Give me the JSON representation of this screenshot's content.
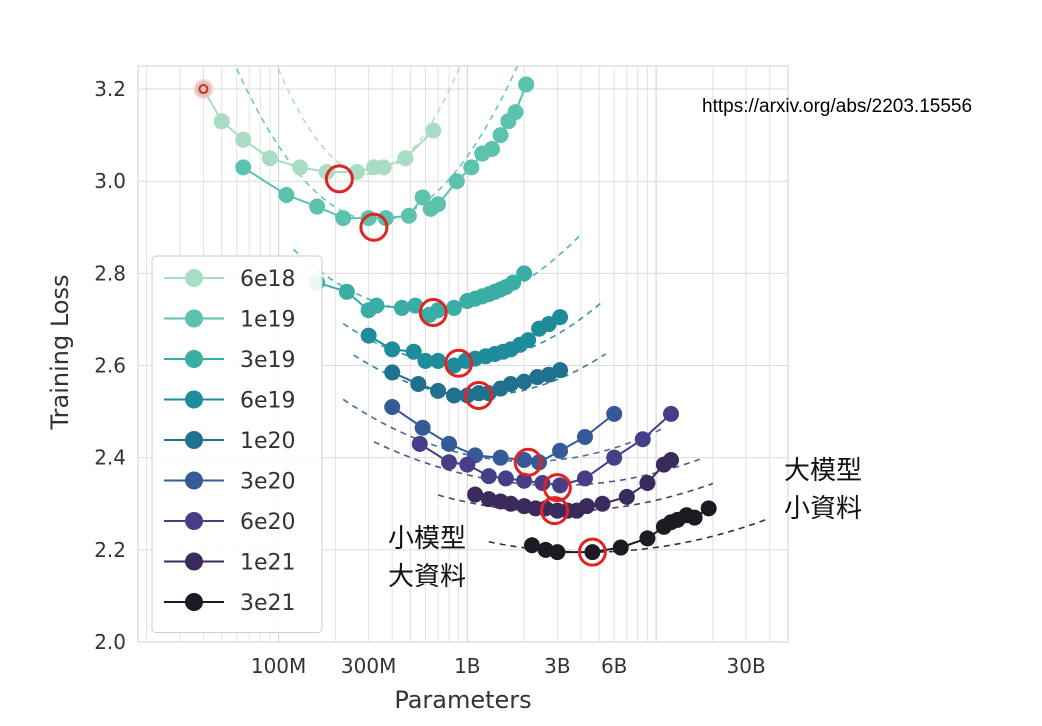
{
  "source_url": "https://arxiv.org/abs/2203.15556",
  "annotations": {
    "left": "小模型\n大資料",
    "right": "大模型\n小資料"
  },
  "chart_data": {
    "type": "scatter",
    "xlabel": "Parameters",
    "ylabel": "Training Loss",
    "x_scale": "log",
    "xlim": [
      18000000,
      50000000000
    ],
    "ylim": [
      2.0,
      3.25
    ],
    "x_ticks": [
      {
        "value": 100000000,
        "label": "100M"
      },
      {
        "value": 300000000,
        "label": "300M"
      },
      {
        "value": 1000000000,
        "label": "1B"
      },
      {
        "value": 3000000000,
        "label": "3B"
      },
      {
        "value": 6000000000,
        "label": "6B"
      },
      {
        "value": 30000000000,
        "label": "30B"
      }
    ],
    "y_ticks": [
      2.0,
      2.2,
      2.4,
      2.6,
      2.8,
      3.0,
      3.2
    ],
    "grid": true,
    "legend_position": "left",
    "series": [
      {
        "name": "6e18",
        "color": "#a8dcc4",
        "x": [
          40000000.0,
          50000000.0,
          65000000.0,
          90000000.0,
          130000000.0,
          180000000.0,
          260000000.0,
          320000000.0,
          360000000.0,
          470000000.0,
          660000000.0
        ],
        "y": [
          3.2,
          3.13,
          3.09,
          3.05,
          3.03,
          3.02,
          3.02,
          3.03,
          3.03,
          3.05,
          3.11
        ],
        "fit": {
          "x0": 300000000.0,
          "y0": 3.015,
          "k": 1.0,
          "range": [
            35000000.0,
            2200000000.0
          ]
        },
        "optimum": {
          "x": 210000000.0,
          "y": 3.005
        }
      },
      {
        "name": "1e19",
        "color": "#5cc2ad",
        "x": [
          65000000.0,
          110000000.0,
          160000000.0,
          220000000.0,
          300000000.0,
          370000000.0,
          490000000.0,
          580000000.0,
          640000000.0,
          700000000.0,
          880000000.0,
          1050000000.0,
          1200000000.0,
          1350000000.0,
          1500000000.0,
          1650000000.0,
          1800000000.0,
          2050000000.0
        ],
        "y": [
          3.03,
          2.97,
          2.945,
          2.92,
          2.92,
          2.92,
          2.925,
          2.965,
          2.94,
          2.95,
          3.0,
          3.03,
          3.06,
          3.07,
          3.1,
          3.13,
          3.15,
          3.21
        ],
        "fit": {
          "x0": 330000000.0,
          "y0": 2.915,
          "k": 0.6,
          "range": [
            60000000.0,
            2400000000.0
          ]
        },
        "optimum": {
          "x": 320000000.0,
          "y": 2.9
        }
      },
      {
        "name": "3e19",
        "color": "#3aaea4",
        "x": [
          160000000.0,
          230000000.0,
          300000000.0,
          330000000.0,
          450000000.0,
          530000000.0,
          630000000.0,
          700000000.0,
          850000000.0,
          1000000000.0,
          1100000000.0,
          1200000000.0,
          1300000000.0,
          1400000000.0,
          1500000000.0,
          1600000000.0,
          1750000000.0,
          2000000000.0
        ],
        "y": [
          2.78,
          2.76,
          2.72,
          2.73,
          2.725,
          2.73,
          2.71,
          2.72,
          2.725,
          2.74,
          2.745,
          2.75,
          2.755,
          2.76,
          2.765,
          2.77,
          2.78,
          2.8
        ],
        "fit": {
          "x0": 630000000.0,
          "y0": 2.717,
          "k": 0.26,
          "range": [
            120000000.0,
            4000000000.0
          ]
        },
        "optimum": {
          "x": 660000000.0,
          "y": 2.715
        }
      },
      {
        "name": "6e19",
        "color": "#1f8c9c",
        "x": [
          300000000.0,
          400000000.0,
          520000000.0,
          600000000.0,
          700000000.0,
          850000000.0,
          980000000.0,
          1100000000.0,
          1250000000.0,
          1400000000.0,
          1550000000.0,
          1700000000.0,
          1900000000.0,
          2100000000.0,
          2400000000.0,
          2700000000.0,
          3100000000.0
        ],
        "y": [
          2.665,
          2.635,
          2.63,
          2.61,
          2.61,
          2.6,
          2.61,
          2.615,
          2.62,
          2.625,
          2.63,
          2.635,
          2.645,
          2.655,
          2.68,
          2.69,
          2.705
        ],
        "fit": {
          "x0": 900000000.0,
          "y0": 2.605,
          "k": 0.23,
          "range": [
            220000000.0,
            5200000000.0
          ]
        },
        "optimum": {
          "x": 900000000.0,
          "y": 2.605
        }
      },
      {
        "name": "1e20",
        "color": "#207090",
        "x": [
          400000000.0,
          550000000.0,
          700000000.0,
          850000000.0,
          1000000000.0,
          1150000000.0,
          1300000000.0,
          1500000000.0,
          1700000000.0,
          2000000000.0,
          2350000000.0,
          2700000000.0,
          3100000000.0
        ],
        "y": [
          2.585,
          2.56,
          2.545,
          2.535,
          2.535,
          2.54,
          2.54,
          2.55,
          2.56,
          2.565,
          2.575,
          2.58,
          2.59
        ],
        "fit": {
          "x0": 1150000000.0,
          "y0": 2.535,
          "k": 0.2,
          "range": [
            250000000.0,
            5400000000.0
          ]
        },
        "optimum": {
          "x": 1150000000.0,
          "y": 2.535
        }
      },
      {
        "name": "3e20",
        "color": "#345a98",
        "x": [
          400000000.0,
          580000000.0,
          800000000.0,
          1100000000.0,
          1500000000.0,
          2000000000.0,
          2400000000.0,
          3100000000.0,
          4200000000.0,
          6000000000.0
        ],
        "y": [
          2.51,
          2.465,
          2.43,
          2.405,
          2.4,
          2.395,
          2.39,
          2.415,
          2.445,
          2.495
        ],
        "fit": {
          "x0": 2100000000.0,
          "y0": 2.392,
          "k": 0.14,
          "range": [
            220000000.0,
            11000000000.0
          ]
        },
        "optimum": {
          "x": 2100000000.0,
          "y": 2.39
        }
      },
      {
        "name": "6e20",
        "color": "#463f88",
        "x": [
          560000000.0,
          800000000.0,
          1000000000.0,
          1300000000.0,
          1600000000.0,
          2000000000.0,
          2500000000.0,
          3100000000.0,
          4200000000.0,
          6000000000.0,
          8500000000.0,
          12000000000.0
        ],
        "y": [
          2.43,
          2.39,
          2.385,
          2.36,
          2.355,
          2.35,
          2.345,
          2.34,
          2.355,
          2.4,
          2.44,
          2.495
        ],
        "fit": {
          "x0": 3000000000.0,
          "y0": 2.34,
          "k": 0.1,
          "range": [
            320000000.0,
            17000000000.0
          ]
        },
        "optimum": {
          "x": 3000000000.0,
          "y": 2.335
        }
      },
      {
        "name": "1e21",
        "color": "#3a2b5c",
        "x": [
          1100000000.0,
          1300000000.0,
          1500000000.0,
          1700000000.0,
          2000000000.0,
          2300000000.0,
          2600000000.0,
          3000000000.0,
          3400000000.0,
          3800000000.0,
          4300000000.0,
          5200000000.0,
          7000000000.0,
          9000000000.0,
          11000000000.0,
          12000000000.0
        ],
        "y": [
          2.32,
          2.31,
          2.305,
          2.3,
          2.295,
          2.29,
          2.29,
          2.285,
          2.285,
          2.285,
          2.295,
          2.3,
          2.315,
          2.345,
          2.385,
          2.395
        ],
        "fit": {
          "x0": 3000000000.0,
          "y0": 2.283,
          "k": 0.09,
          "range": [
            700000000.0,
            20000000000.0
          ]
        },
        "optimum": {
          "x": 2900000000.0,
          "y": 2.285
        }
      },
      {
        "name": "3e21",
        "color": "#1e1a24",
        "x": [
          2200000000.0,
          2600000000.0,
          3000000000.0,
          4600000000.0,
          6500000000.0,
          9000000000.0,
          11000000000.0,
          12000000000.0,
          13000000000.0,
          14500000000.0,
          16000000000.0,
          19000000000.0
        ],
        "y": [
          2.21,
          2.2,
          2.195,
          2.195,
          2.205,
          2.225,
          2.25,
          2.26,
          2.265,
          2.275,
          2.27,
          2.29
        ],
        "fit": {
          "x0": 4400000000.0,
          "y0": 2.195,
          "k": 0.08,
          "range": [
            1300000000.0,
            38000000000.0
          ]
        },
        "optimum": {
          "x": 4600000000.0,
          "y": 2.195
        }
      }
    ]
  }
}
